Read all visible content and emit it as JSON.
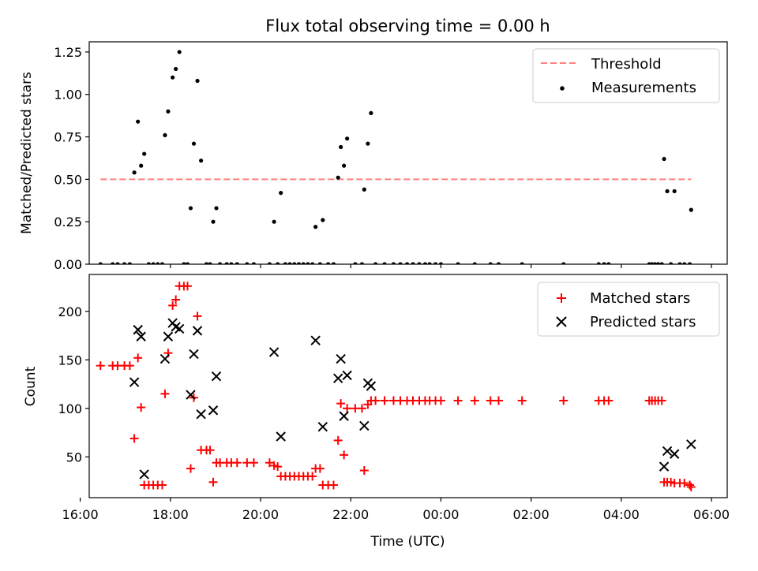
{
  "chart_data": [
    {
      "type": "scatter",
      "title": "Flux total observing time = 0.00 h",
      "xlabel": "",
      "ylabel": "Matched/Predicted stars",
      "ylim": [
        0,
        1.31
      ],
      "xlim_hours": [
        16.2,
        30.35
      ],
      "y_ticks": [
        0.0,
        0.25,
        0.5,
        0.75,
        1.0,
        1.25
      ],
      "y_tick_labels": [
        "0.00",
        "0.25",
        "0.50",
        "0.75",
        "1.00",
        "1.25"
      ],
      "legend_position": "upper right",
      "threshold": {
        "name": "Threshold",
        "value": 0.5,
        "x_start": 16.45,
        "x_end": 29.55,
        "color": "#ff7f7f",
        "style": "dashed"
      },
      "series": [
        {
          "name": "Measurements",
          "color": "#000000",
          "marker": "dot",
          "points": [
            [
              16.45,
              0
            ],
            [
              16.72,
              0
            ],
            [
              16.83,
              0
            ],
            [
              16.98,
              0
            ],
            [
              17.1,
              0
            ],
            [
              17.2,
              0.54
            ],
            [
              17.28,
              0.84
            ],
            [
              17.35,
              0.58
            ],
            [
              17.42,
              0.65
            ],
            [
              17.52,
              0
            ],
            [
              17.62,
              0
            ],
            [
              17.72,
              0
            ],
            [
              17.82,
              0
            ],
            [
              17.88,
              0.76
            ],
            [
              17.95,
              0.9
            ],
            [
              18.05,
              1.1
            ],
            [
              18.12,
              1.15
            ],
            [
              18.2,
              1.25
            ],
            [
              18.3,
              0
            ],
            [
              18.38,
              0
            ],
            [
              18.45,
              0.33
            ],
            [
              18.52,
              0.71
            ],
            [
              18.6,
              1.08
            ],
            [
              18.68,
              0.61
            ],
            [
              18.8,
              0
            ],
            [
              18.88,
              0
            ],
            [
              18.95,
              0.25
            ],
            [
              19.02,
              0.33
            ],
            [
              19.1,
              0
            ],
            [
              19.25,
              0
            ],
            [
              19.35,
              0
            ],
            [
              19.48,
              0
            ],
            [
              19.7,
              0
            ],
            [
              19.85,
              0
            ],
            [
              20.2,
              0
            ],
            [
              20.3,
              0.25
            ],
            [
              20.38,
              0
            ],
            [
              20.45,
              0.42
            ],
            [
              20.55,
              0
            ],
            [
              20.65,
              0
            ],
            [
              20.75,
              0
            ],
            [
              20.85,
              0
            ],
            [
              20.95,
              0
            ],
            [
              21.05,
              0
            ],
            [
              21.15,
              0
            ],
            [
              21.22,
              0.22
            ],
            [
              21.32,
              0
            ],
            [
              21.38,
              0.26
            ],
            [
              21.5,
              0
            ],
            [
              21.62,
              0
            ],
            [
              21.72,
              0.51
            ],
            [
              21.78,
              0.69
            ],
            [
              21.85,
              0.58
            ],
            [
              21.92,
              0.74
            ],
            [
              22.1,
              0
            ],
            [
              22.25,
              0
            ],
            [
              22.3,
              0.44
            ],
            [
              22.38,
              0.71
            ],
            [
              22.45,
              0.89
            ],
            [
              22.55,
              0
            ],
            [
              22.75,
              0
            ],
            [
              22.95,
              0
            ],
            [
              23.1,
              0
            ],
            [
              23.25,
              0
            ],
            [
              23.38,
              0
            ],
            [
              23.52,
              0
            ],
            [
              23.65,
              0
            ],
            [
              23.75,
              0
            ],
            [
              23.88,
              0
            ],
            [
              24.0,
              0
            ],
            [
              24.38,
              0
            ],
            [
              24.75,
              0
            ],
            [
              25.1,
              0
            ],
            [
              25.28,
              0
            ],
            [
              25.8,
              0
            ],
            [
              26.72,
              0
            ],
            [
              27.5,
              0
            ],
            [
              27.62,
              0
            ],
            [
              27.72,
              0
            ],
            [
              28.62,
              0
            ],
            [
              28.68,
              0
            ],
            [
              28.75,
              0
            ],
            [
              28.82,
              0
            ],
            [
              28.9,
              0
            ],
            [
              28.95,
              0.62
            ],
            [
              29.02,
              0.43
            ],
            [
              29.1,
              0
            ],
            [
              29.18,
              0.43
            ],
            [
              29.3,
              0
            ],
            [
              29.4,
              0
            ],
            [
              29.52,
              0
            ],
            [
              29.55,
              0.32
            ]
          ]
        }
      ]
    },
    {
      "type": "scatter",
      "title": "",
      "xlabel": "Time (UTC)",
      "ylabel": "Count",
      "ylim": [
        8,
        238
      ],
      "xlim_hours": [
        16.2,
        30.35
      ],
      "y_ticks": [
        50,
        100,
        150,
        200
      ],
      "y_tick_labels": [
        "50",
        "100",
        "150",
        "200"
      ],
      "x_ticks_hours": [
        16,
        18,
        20,
        22,
        24,
        26,
        28,
        30
      ],
      "x_tick_labels": [
        "16:00",
        "18:00",
        "20:00",
        "22:00",
        "00:00",
        "02:00",
        "04:00",
        "06:00"
      ],
      "legend_position": "upper right",
      "series": [
        {
          "name": "Matched stars",
          "color": "#ff0000",
          "marker": "plus",
          "points": [
            [
              16.45,
              144
            ],
            [
              16.72,
              144
            ],
            [
              16.83,
              144
            ],
            [
              16.98,
              144
            ],
            [
              17.1,
              144
            ],
            [
              17.2,
              69
            ],
            [
              17.28,
              152
            ],
            [
              17.35,
              101
            ],
            [
              17.42,
              21
            ],
            [
              17.52,
              21
            ],
            [
              17.62,
              21
            ],
            [
              17.72,
              21
            ],
            [
              17.82,
              21
            ],
            [
              17.88,
              115
            ],
            [
              17.95,
              157
            ],
            [
              18.05,
              206
            ],
            [
              18.12,
              212
            ],
            [
              18.2,
              226
            ],
            [
              18.3,
              226
            ],
            [
              18.38,
              226
            ],
            [
              18.45,
              38
            ],
            [
              18.52,
              111
            ],
            [
              18.6,
              195
            ],
            [
              18.68,
              57
            ],
            [
              18.8,
              57
            ],
            [
              18.88,
              57
            ],
            [
              18.95,
              24
            ],
            [
              19.02,
              44
            ],
            [
              19.1,
              44
            ],
            [
              19.25,
              44
            ],
            [
              19.35,
              44
            ],
            [
              19.48,
              44
            ],
            [
              19.7,
              44
            ],
            [
              19.85,
              44
            ],
            [
              20.2,
              44
            ],
            [
              20.3,
              41
            ],
            [
              20.38,
              40
            ],
            [
              20.45,
              30
            ],
            [
              20.55,
              30
            ],
            [
              20.65,
              30
            ],
            [
              20.75,
              30
            ],
            [
              20.85,
              30
            ],
            [
              20.95,
              30
            ],
            [
              21.05,
              30
            ],
            [
              21.15,
              30
            ],
            [
              21.22,
              38
            ],
            [
              21.32,
              38
            ],
            [
              21.38,
              21
            ],
            [
              21.5,
              21
            ],
            [
              21.62,
              21
            ],
            [
              21.72,
              67
            ],
            [
              21.78,
              105
            ],
            [
              21.85,
              52
            ],
            [
              21.92,
              100
            ],
            [
              22.1,
              100
            ],
            [
              22.25,
              100
            ],
            [
              22.3,
              36
            ],
            [
              22.38,
              104
            ],
            [
              22.45,
              108
            ],
            [
              22.55,
              108
            ],
            [
              22.75,
              108
            ],
            [
              22.95,
              108
            ],
            [
              23.1,
              108
            ],
            [
              23.25,
              108
            ],
            [
              23.38,
              108
            ],
            [
              23.52,
              108
            ],
            [
              23.65,
              108
            ],
            [
              23.75,
              108
            ],
            [
              23.88,
              108
            ],
            [
              24.0,
              108
            ],
            [
              24.38,
              108
            ],
            [
              24.75,
              108
            ],
            [
              25.1,
              108
            ],
            [
              25.28,
              108
            ],
            [
              25.8,
              108
            ],
            [
              26.72,
              108
            ],
            [
              27.5,
              108
            ],
            [
              27.62,
              108
            ],
            [
              27.72,
              108
            ],
            [
              28.62,
              108
            ],
            [
              28.68,
              108
            ],
            [
              28.75,
              108
            ],
            [
              28.82,
              108
            ],
            [
              28.9,
              108
            ],
            [
              28.95,
              24
            ],
            [
              29.02,
              24
            ],
            [
              29.1,
              24
            ],
            [
              29.18,
              23
            ],
            [
              29.3,
              23
            ],
            [
              29.4,
              23
            ],
            [
              29.52,
              21
            ],
            [
              29.55,
              19
            ]
          ]
        },
        {
          "name": "Predicted stars",
          "color": "#000000",
          "marker": "x",
          "points": [
            [
              17.2,
              127
            ],
            [
              17.28,
              181
            ],
            [
              17.35,
              174
            ],
            [
              17.42,
              32
            ],
            [
              17.88,
              151
            ],
            [
              17.95,
              174
            ],
            [
              18.05,
              188
            ],
            [
              18.12,
              184
            ],
            [
              18.2,
              182
            ],
            [
              18.45,
              114
            ],
            [
              18.52,
              156
            ],
            [
              18.6,
              180
            ],
            [
              18.68,
              94
            ],
            [
              18.95,
              98
            ],
            [
              19.02,
              133
            ],
            [
              20.3,
              158
            ],
            [
              20.45,
              71
            ],
            [
              21.22,
              170
            ],
            [
              21.38,
              81
            ],
            [
              21.72,
              131
            ],
            [
              21.78,
              151
            ],
            [
              21.85,
              92
            ],
            [
              21.92,
              134
            ],
            [
              22.3,
              82
            ],
            [
              22.38,
              126
            ],
            [
              22.45,
              123
            ],
            [
              28.95,
              40
            ],
            [
              29.02,
              56
            ],
            [
              29.18,
              53
            ],
            [
              29.55,
              63
            ]
          ]
        }
      ]
    }
  ]
}
